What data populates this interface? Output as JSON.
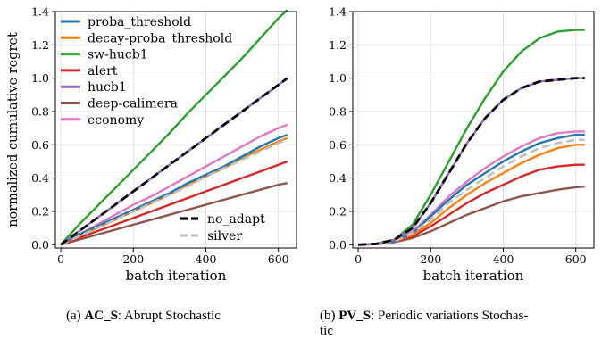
{
  "captions": {
    "a": {
      "tag": "(a)",
      "bold": "AC_S",
      "rest": ": Abrupt Stochastic"
    },
    "b": {
      "tag": "(b)",
      "bold": "PV_S",
      "rest": ": Periodic variations Stochas-",
      "rest2": "tic"
    }
  },
  "styles": {
    "colors": {
      "proba_threshold": "#1f77b4",
      "decay-proba_threshold": "#ff7f0e",
      "sw-hucb1": "#2ca02c",
      "alert": "#d62728",
      "hucb1": "#9467bd",
      "deep-calimera": "#8c564b",
      "economy": "#e377c2",
      "no_adapt": "#000000",
      "silver": "#c0c0c0"
    }
  },
  "chart_data": [
    {
      "type": "line",
      "id": "a",
      "xlabel": "batch iteration",
      "ylabel": "normalized cumulative regret",
      "xlim": [
        -15,
        650
      ],
      "ylim": [
        -0.02,
        1.4
      ],
      "xticks": [
        0,
        200,
        400,
        600
      ],
      "yticks": [
        0.0,
        0.2,
        0.4,
        0.6,
        0.8,
        1.0,
        1.2,
        1.4
      ],
      "ytick_labels": [
        "0.0",
        "0.2",
        "0.4",
        "0.6",
        "0.8",
        "1.0",
        "1.2",
        "1.4"
      ],
      "xtick_labels": [
        "0",
        "200",
        "400",
        "600"
      ],
      "grid": true,
      "legend_main": [
        "proba_threshold",
        "decay-proba_threshold",
        "sw-hucb1",
        "alert",
        "hucb1",
        "deep-calimera",
        "economy"
      ],
      "legend_main_placement": "top-left",
      "legend_ref": [
        "no_adapt",
        "silver"
      ],
      "legend_ref_placement": "lower-right",
      "series": [
        {
          "name": "proba_threshold",
          "x": [
            0,
            50,
            100,
            150,
            200,
            250,
            300,
            350,
            400,
            450,
            500,
            550,
            600,
            625
          ],
          "y": [
            0,
            0.06,
            0.11,
            0.16,
            0.21,
            0.26,
            0.31,
            0.37,
            0.42,
            0.47,
            0.53,
            0.59,
            0.64,
            0.66
          ]
        },
        {
          "name": "decay-proba_threshold",
          "x": [
            0,
            50,
            100,
            150,
            200,
            250,
            300,
            350,
            400,
            450,
            500,
            550,
            600,
            625
          ],
          "y": [
            0,
            0.05,
            0.1,
            0.15,
            0.2,
            0.25,
            0.3,
            0.36,
            0.41,
            0.46,
            0.52,
            0.57,
            0.62,
            0.64
          ]
        },
        {
          "name": "sw-hucb1",
          "x": [
            0,
            50,
            100,
            150,
            200,
            250,
            300,
            350,
            400,
            450,
            500,
            550,
            600,
            625
          ],
          "y": [
            0,
            0.12,
            0.23,
            0.34,
            0.45,
            0.56,
            0.67,
            0.79,
            0.9,
            1.01,
            1.12,
            1.24,
            1.36,
            1.41
          ]
        },
        {
          "name": "alert",
          "x": [
            0,
            50,
            100,
            150,
            200,
            250,
            300,
            350,
            400,
            450,
            500,
            550,
            600,
            625
          ],
          "y": [
            0,
            0.04,
            0.08,
            0.12,
            0.16,
            0.2,
            0.24,
            0.28,
            0.32,
            0.36,
            0.4,
            0.44,
            0.48,
            0.5
          ]
        },
        {
          "name": "hucb1",
          "x": [
            0,
            50,
            100,
            150,
            200,
            250,
            300,
            350,
            400,
            450,
            500,
            550,
            600,
            625
          ],
          "y": [
            0,
            0.08,
            0.16,
            0.24,
            0.32,
            0.4,
            0.48,
            0.56,
            0.64,
            0.72,
            0.8,
            0.88,
            0.96,
            1.0
          ]
        },
        {
          "name": "deep-calimera",
          "x": [
            0,
            50,
            100,
            150,
            200,
            250,
            300,
            350,
            400,
            450,
            500,
            550,
            600,
            625
          ],
          "y": [
            0,
            0.03,
            0.06,
            0.09,
            0.12,
            0.15,
            0.18,
            0.21,
            0.24,
            0.27,
            0.3,
            0.33,
            0.36,
            0.37
          ]
        },
        {
          "name": "economy",
          "x": [
            0,
            50,
            100,
            150,
            200,
            250,
            300,
            350,
            400,
            450,
            500,
            550,
            600,
            625
          ],
          "y": [
            0,
            0.06,
            0.12,
            0.18,
            0.24,
            0.29,
            0.35,
            0.41,
            0.47,
            0.53,
            0.59,
            0.65,
            0.7,
            0.72
          ]
        },
        {
          "name": "silver",
          "x": [
            0,
            50,
            100,
            150,
            200,
            250,
            300,
            350,
            400,
            450,
            500,
            550,
            600,
            625
          ],
          "y": [
            0,
            0.05,
            0.1,
            0.15,
            0.2,
            0.25,
            0.3,
            0.35,
            0.41,
            0.46,
            0.51,
            0.56,
            0.61,
            0.63
          ]
        },
        {
          "name": "no_adapt",
          "x": [
            0,
            50,
            100,
            150,
            200,
            250,
            300,
            350,
            400,
            450,
            500,
            550,
            600,
            625
          ],
          "y": [
            0,
            0.08,
            0.16,
            0.24,
            0.32,
            0.4,
            0.48,
            0.56,
            0.64,
            0.72,
            0.8,
            0.88,
            0.96,
            1.0
          ]
        }
      ]
    },
    {
      "type": "line",
      "id": "b",
      "xlabel": "batch iteration",
      "ylabel": "",
      "xlim": [
        -15,
        650
      ],
      "ylim": [
        -0.02,
        1.4
      ],
      "xticks": [
        0,
        200,
        400,
        600
      ],
      "yticks": [
        0.0,
        0.2,
        0.4,
        0.6,
        0.8,
        1.0,
        1.2,
        1.4
      ],
      "ytick_labels": [
        "0.0",
        "0.2",
        "0.4",
        "0.6",
        "0.8",
        "1.0",
        "1.2",
        "1.4"
      ],
      "xtick_labels": [
        "0",
        "200",
        "400",
        "600"
      ],
      "grid": true,
      "series": [
        {
          "name": "proba_threshold",
          "x": [
            0,
            50,
            100,
            150,
            200,
            250,
            300,
            350,
            400,
            450,
            500,
            550,
            600,
            625
          ],
          "y": [
            0,
            0.005,
            0.02,
            0.07,
            0.17,
            0.27,
            0.36,
            0.43,
            0.5,
            0.56,
            0.61,
            0.64,
            0.66,
            0.66
          ]
        },
        {
          "name": "decay-proba_threshold",
          "x": [
            0,
            50,
            100,
            150,
            200,
            250,
            300,
            350,
            400,
            450,
            500,
            550,
            600,
            625
          ],
          "y": [
            0,
            0.005,
            0.02,
            0.06,
            0.13,
            0.22,
            0.3,
            0.37,
            0.43,
            0.49,
            0.54,
            0.58,
            0.6,
            0.6
          ]
        },
        {
          "name": "sw-hucb1",
          "x": [
            0,
            50,
            100,
            150,
            200,
            250,
            300,
            350,
            400,
            450,
            500,
            550,
            600,
            625
          ],
          "y": [
            0,
            0.005,
            0.03,
            0.12,
            0.3,
            0.5,
            0.7,
            0.88,
            1.04,
            1.16,
            1.24,
            1.28,
            1.29,
            1.29
          ]
        },
        {
          "name": "alert",
          "x": [
            0,
            50,
            100,
            150,
            200,
            250,
            300,
            350,
            400,
            450,
            500,
            550,
            600,
            625
          ],
          "y": [
            0,
            0.004,
            0.02,
            0.05,
            0.11,
            0.18,
            0.25,
            0.31,
            0.36,
            0.41,
            0.45,
            0.47,
            0.48,
            0.48
          ]
        },
        {
          "name": "hucb1",
          "x": [
            0,
            50,
            100,
            150,
            200,
            250,
            300,
            350,
            400,
            450,
            500,
            550,
            600,
            625
          ],
          "y": [
            0,
            0.005,
            0.03,
            0.1,
            0.25,
            0.43,
            0.61,
            0.76,
            0.87,
            0.94,
            0.98,
            0.99,
            1.0,
            1.0
          ]
        },
        {
          "name": "deep-calimera",
          "x": [
            0,
            50,
            100,
            150,
            200,
            250,
            300,
            350,
            400,
            450,
            500,
            550,
            600,
            625
          ],
          "y": [
            0,
            0.003,
            0.015,
            0.04,
            0.08,
            0.13,
            0.18,
            0.22,
            0.26,
            0.29,
            0.31,
            0.33,
            0.345,
            0.35
          ]
        },
        {
          "name": "economy",
          "x": [
            0,
            50,
            100,
            150,
            200,
            250,
            300,
            350,
            400,
            450,
            500,
            550,
            600,
            625
          ],
          "y": [
            0,
            0.005,
            0.025,
            0.08,
            0.18,
            0.29,
            0.38,
            0.46,
            0.53,
            0.59,
            0.64,
            0.67,
            0.68,
            0.68
          ]
        },
        {
          "name": "silver",
          "x": [
            0,
            50,
            100,
            150,
            200,
            250,
            300,
            350,
            400,
            450,
            500,
            550,
            600,
            625
          ],
          "y": [
            0,
            0.005,
            0.02,
            0.07,
            0.15,
            0.25,
            0.33,
            0.4,
            0.47,
            0.53,
            0.58,
            0.61,
            0.63,
            0.63
          ]
        },
        {
          "name": "no_adapt",
          "x": [
            0,
            50,
            100,
            150,
            200,
            250,
            300,
            350,
            400,
            450,
            500,
            550,
            600,
            625
          ],
          "y": [
            0,
            0.005,
            0.03,
            0.1,
            0.25,
            0.43,
            0.61,
            0.76,
            0.87,
            0.94,
            0.98,
            0.99,
            1.0,
            1.0
          ]
        }
      ]
    }
  ]
}
